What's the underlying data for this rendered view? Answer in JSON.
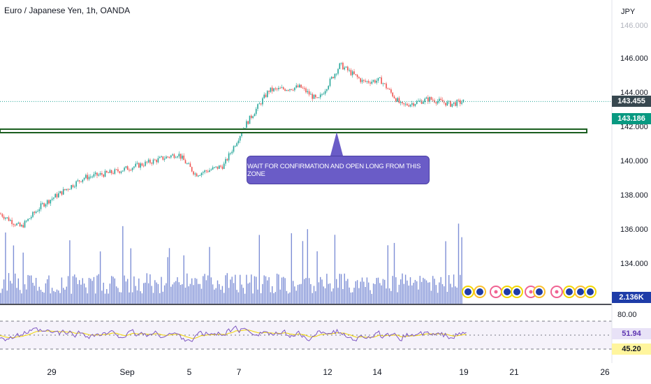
{
  "header": {
    "title": "Euro / Japanese Yen, 1h, OANDA",
    "currency": "JPY"
  },
  "annotation": {
    "text": "WAIT FOR CONFIRMATION AND OPEN LONG FROM THIS ZONE"
  },
  "badges": {
    "last_price": "143.455",
    "zone_price": "143.186",
    "volume": "2.136K",
    "rsi": "51.94",
    "rsi_ma": "45.20"
  },
  "colors": {
    "up": "#26a69a",
    "down": "#ef5350",
    "volume": "#7e8fd6",
    "zone_line": "#1b5e20",
    "callout": "#6a5cc7",
    "rsi_line": "#7e57c2",
    "rsi_ma_line": "#f2d600",
    "last_price_badge": "#37474f",
    "zone_badge": "#089981",
    "volume_badge": "#1e3ca8",
    "rsi_badge": "#e8e2f7",
    "rsi_ma_badge": "#fff59d"
  },
  "chart_data": {
    "type": "candlestick",
    "title": "Euro / Japanese Yen, 1h, OANDA",
    "ylabel": "JPY",
    "ylim": [
      132.4,
      148.2
    ],
    "price_ticks": [
      "146.000",
      "144.000",
      "142.000",
      "140.000",
      "138.000",
      "136.000",
      "134.000"
    ],
    "x_ticks": [
      "29",
      "Sep",
      "5",
      "7",
      "12",
      "14",
      "19",
      "21",
      "26"
    ],
    "last_price": 143.455,
    "support_zone": 143.186,
    "price_path": [
      {
        "x": "Aug 25",
        "price": 136.9
      },
      {
        "x": "Aug 26",
        "price": 136.1
      },
      {
        "x": "Aug 28",
        "price": 137.4
      },
      {
        "x": "Aug 29",
        "price": 138.2
      },
      {
        "x": "Aug 31",
        "price": 139.0
      },
      {
        "x": "Sep 1",
        "price": 139.3
      },
      {
        "x": "Sep 2",
        "price": 139.8
      },
      {
        "x": "Sep 4",
        "price": 140.4
      },
      {
        "x": "Sep 5",
        "price": 139.2
      },
      {
        "x": "Sep 6",
        "price": 139.7
      },
      {
        "x": "Sep 7",
        "price": 142.0
      },
      {
        "x": "Sep 8",
        "price": 144.1
      },
      {
        "x": "Sep 9",
        "price": 144.3
      },
      {
        "x": "Sep 11",
        "price": 143.5
      },
      {
        "x": "Sep 12",
        "price": 145.6
      },
      {
        "x": "Sep 13",
        "price": 144.6
      },
      {
        "x": "Sep 14",
        "price": 144.7
      },
      {
        "x": "Sep 15",
        "price": 143.2
      },
      {
        "x": "Sep 16",
        "price": 143.6
      },
      {
        "x": "Sep 18",
        "price": 143.3
      },
      {
        "x": "Sep 19",
        "price": 143.455
      }
    ],
    "volume": {
      "last": "2.136K"
    },
    "rsi": {
      "levels": [
        80.0
      ],
      "value": 51.94,
      "ma": 45.2,
      "tick": "80.00"
    }
  }
}
